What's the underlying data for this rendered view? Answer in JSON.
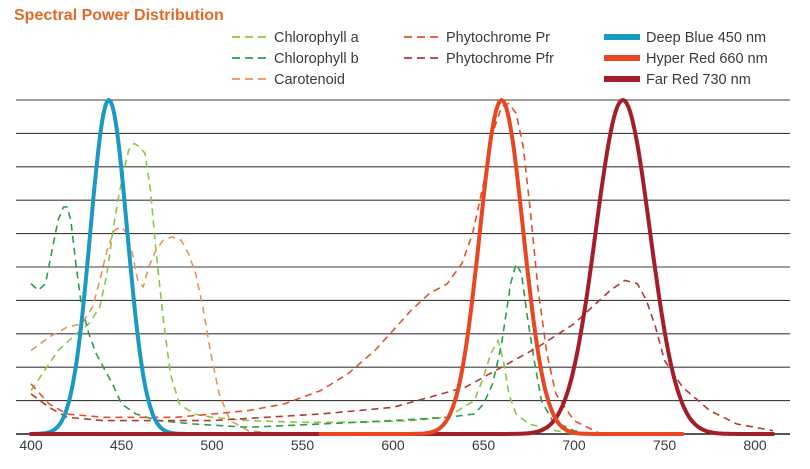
{
  "chart_data": {
    "type": "line",
    "title": "Spectral Power Distribution",
    "title_color": "#e06a28",
    "xlabel": "",
    "ylabel": "",
    "xlim": [
      400,
      810
    ],
    "ylim": [
      0,
      1.0
    ],
    "x_ticks": [
      400,
      450,
      500,
      550,
      600,
      650,
      700,
      750,
      800
    ],
    "grid": "horizontal",
    "y_gridlines": 10,
    "legend_position": "top-right",
    "series": [
      {
        "name": "Chlorophyll a",
        "style": "dashed",
        "color": "#8cc63f",
        "weight": "thin",
        "points": [
          [
            400,
            0.13
          ],
          [
            415,
            0.25
          ],
          [
            425,
            0.3
          ],
          [
            432,
            0.33
          ],
          [
            438,
            0.38
          ],
          [
            442,
            0.48
          ],
          [
            445,
            0.6
          ],
          [
            448,
            0.7
          ],
          [
            451,
            0.78
          ],
          [
            454,
            0.85
          ],
          [
            457,
            0.87
          ],
          [
            460,
            0.86
          ],
          [
            463,
            0.84
          ],
          [
            466,
            0.73
          ],
          [
            469,
            0.55
          ],
          [
            473,
            0.35
          ],
          [
            477,
            0.18
          ],
          [
            482,
            0.09
          ],
          [
            490,
            0.06
          ],
          [
            500,
            0.05
          ],
          [
            520,
            0.04
          ],
          [
            550,
            0.035
          ],
          [
            580,
            0.035
          ],
          [
            610,
            0.04
          ],
          [
            630,
            0.05
          ],
          [
            645,
            0.1
          ],
          [
            650,
            0.17
          ],
          [
            654,
            0.24
          ],
          [
            658,
            0.28
          ],
          [
            661,
            0.22
          ],
          [
            664,
            0.12
          ],
          [
            668,
            0.06
          ],
          [
            675,
            0.03
          ],
          [
            690,
            0.01
          ],
          [
            700,
            0.0
          ]
        ]
      },
      {
        "name": "Chlorophyll b",
        "style": "dashed",
        "color": "#2e9b4a",
        "weight": "thin",
        "points": [
          [
            400,
            0.45
          ],
          [
            404,
            0.43
          ],
          [
            408,
            0.45
          ],
          [
            412,
            0.56
          ],
          [
            415,
            0.64
          ],
          [
            418,
            0.68
          ],
          [
            420,
            0.68
          ],
          [
            422,
            0.64
          ],
          [
            425,
            0.5
          ],
          [
            428,
            0.38
          ],
          [
            432,
            0.3
          ],
          [
            436,
            0.24
          ],
          [
            440,
            0.2
          ],
          [
            445,
            0.15
          ],
          [
            450,
            0.09
          ],
          [
            458,
            0.06
          ],
          [
            470,
            0.04
          ],
          [
            490,
            0.03
          ],
          [
            520,
            0.02
          ],
          [
            560,
            0.03
          ],
          [
            600,
            0.04
          ],
          [
            630,
            0.05
          ],
          [
            645,
            0.06
          ],
          [
            650,
            0.09
          ],
          [
            655,
            0.15
          ],
          [
            660,
            0.27
          ],
          [
            665,
            0.45
          ],
          [
            668,
            0.51
          ],
          [
            671,
            0.48
          ],
          [
            674,
            0.36
          ],
          [
            678,
            0.22
          ],
          [
            682,
            0.1
          ],
          [
            688,
            0.04
          ],
          [
            700,
            0.01
          ],
          [
            710,
            0.0
          ]
        ]
      },
      {
        "name": "Carotenoid",
        "style": "dashed",
        "color": "#e8935a",
        "weight": "thin",
        "points": [
          [
            400,
            0.25
          ],
          [
            410,
            0.29
          ],
          [
            420,
            0.32
          ],
          [
            428,
            0.33
          ],
          [
            434,
            0.38
          ],
          [
            438,
            0.46
          ],
          [
            442,
            0.55
          ],
          [
            446,
            0.61
          ],
          [
            450,
            0.62
          ],
          [
            453,
            0.6
          ],
          [
            456,
            0.54
          ],
          [
            459,
            0.46
          ],
          [
            462,
            0.44
          ],
          [
            465,
            0.5
          ],
          [
            469,
            0.55
          ],
          [
            473,
            0.58
          ],
          [
            478,
            0.59
          ],
          [
            483,
            0.58
          ],
          [
            487,
            0.54
          ],
          [
            491,
            0.48
          ],
          [
            495,
            0.38
          ],
          [
            499,
            0.25
          ],
          [
            504,
            0.12
          ],
          [
            510,
            0.04
          ],
          [
            520,
            0.01
          ],
          [
            540,
            0.0
          ]
        ]
      },
      {
        "name": "Phytochrome Pr",
        "style": "dashed",
        "color": "#e4502e",
        "weight": "thin",
        "points": [
          [
            400,
            0.15
          ],
          [
            410,
            0.09
          ],
          [
            420,
            0.06
          ],
          [
            440,
            0.05
          ],
          [
            460,
            0.05
          ],
          [
            480,
            0.05
          ],
          [
            500,
            0.06
          ],
          [
            520,
            0.07
          ],
          [
            540,
            0.09
          ],
          [
            560,
            0.13
          ],
          [
            575,
            0.18
          ],
          [
            590,
            0.25
          ],
          [
            600,
            0.31
          ],
          [
            610,
            0.37
          ],
          [
            620,
            0.42
          ],
          [
            630,
            0.45
          ],
          [
            638,
            0.51
          ],
          [
            644,
            0.6
          ],
          [
            650,
            0.75
          ],
          [
            655,
            0.9
          ],
          [
            660,
            0.98
          ],
          [
            664,
            0.99
          ],
          [
            668,
            0.96
          ],
          [
            672,
            0.86
          ],
          [
            676,
            0.66
          ],
          [
            680,
            0.44
          ],
          [
            685,
            0.24
          ],
          [
            690,
            0.12
          ],
          [
            700,
            0.04
          ],
          [
            715,
            0.0
          ]
        ]
      },
      {
        "name": "Phytochrome Pfr",
        "style": "dashed",
        "color": "#b03a37",
        "weight": "thin",
        "points": [
          [
            400,
            0.12
          ],
          [
            410,
            0.08
          ],
          [
            420,
            0.05
          ],
          [
            440,
            0.04
          ],
          [
            470,
            0.04
          ],
          [
            500,
            0.04
          ],
          [
            530,
            0.05
          ],
          [
            560,
            0.06
          ],
          [
            600,
            0.08
          ],
          [
            620,
            0.11
          ],
          [
            640,
            0.14
          ],
          [
            660,
            0.2
          ],
          [
            680,
            0.26
          ],
          [
            700,
            0.33
          ],
          [
            710,
            0.38
          ],
          [
            720,
            0.43
          ],
          [
            728,
            0.46
          ],
          [
            735,
            0.45
          ],
          [
            740,
            0.4
          ],
          [
            745,
            0.32
          ],
          [
            750,
            0.22
          ],
          [
            760,
            0.14
          ],
          [
            775,
            0.07
          ],
          [
            790,
            0.03
          ],
          [
            810,
            0.01
          ]
        ]
      },
      {
        "name": "Deep Blue 450 nm",
        "style": "solid",
        "color": "#1a99c4",
        "weight": "thick",
        "peak": 443,
        "sigma": 10.2,
        "amplitude": 1.0,
        "x_range": [
          400,
          550
        ]
      },
      {
        "name": "Hyper Red 660 nm",
        "style": "solid",
        "color": "#e84722",
        "weight": "thick",
        "peak": 660,
        "sigma": 12.0,
        "amplitude": 1.0,
        "x_range": [
          560,
          760
        ]
      },
      {
        "name": "Far Red 730 nm",
        "style": "solid",
        "color": "#a41e2a",
        "weight": "thick",
        "peak": 727,
        "sigma": 15.0,
        "amplitude": 1.0,
        "x_range": [
          400,
          810
        ]
      }
    ]
  }
}
